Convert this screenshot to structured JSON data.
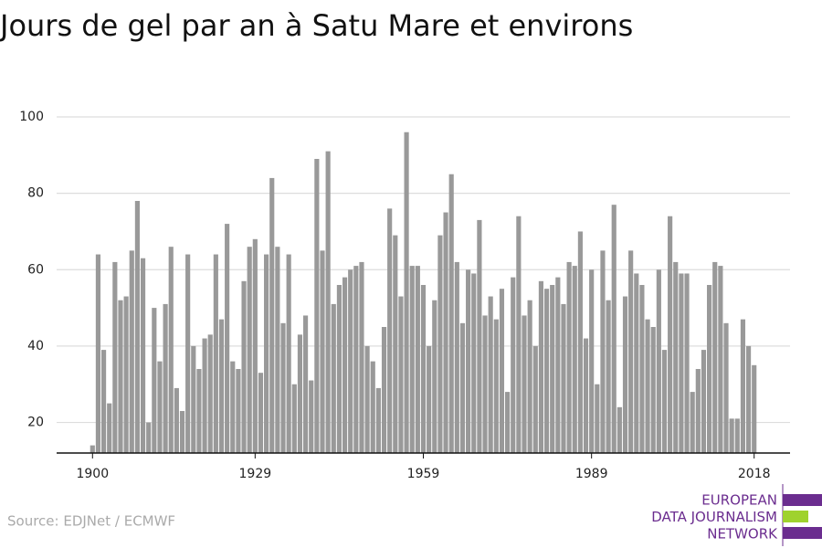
{
  "chart_data": {
    "type": "bar",
    "title": "Jours de gel par an à Satu Mare et environs",
    "source": "Source: EDJNet / ECMWF",
    "logo_lines": [
      "EUROPEAN",
      "DATA JOURNALISM",
      "NETWORK"
    ],
    "color": "#999999",
    "grid": true,
    "x": [
      1900,
      1901,
      1902,
      1903,
      1904,
      1905,
      1906,
      1907,
      1908,
      1909,
      1910,
      1911,
      1912,
      1913,
      1914,
      1915,
      1916,
      1917,
      1918,
      1919,
      1920,
      1921,
      1922,
      1923,
      1924,
      1925,
      1926,
      1927,
      1928,
      1929,
      1930,
      1931,
      1932,
      1933,
      1934,
      1935,
      1936,
      1937,
      1938,
      1939,
      1940,
      1941,
      1942,
      1943,
      1944,
      1945,
      1946,
      1947,
      1948,
      1949,
      1950,
      1951,
      1952,
      1953,
      1954,
      1955,
      1956,
      1957,
      1958,
      1959,
      1960,
      1961,
      1962,
      1963,
      1964,
      1965,
      1966,
      1967,
      1968,
      1969,
      1970,
      1971,
      1972,
      1973,
      1974,
      1975,
      1976,
      1977,
      1978,
      1979,
      1980,
      1981,
      1982,
      1983,
      1984,
      1985,
      1986,
      1987,
      1988,
      1989,
      1990,
      1991,
      1992,
      1993,
      1994,
      1995,
      1996,
      1997,
      1998,
      1999,
      2000,
      2001,
      2002,
      2003,
      2004,
      2005,
      2006,
      2007,
      2008,
      2009,
      2010,
      2011,
      2012,
      2013,
      2014,
      2015,
      2016,
      2017,
      2018
    ],
    "values": [
      14,
      64,
      39,
      25,
      62,
      52,
      53,
      65,
      78,
      63,
      20,
      50,
      36,
      51,
      66,
      29,
      23,
      64,
      40,
      34,
      42,
      43,
      64,
      47,
      72,
      36,
      34,
      57,
      66,
      68,
      33,
      64,
      84,
      66,
      46,
      64,
      30,
      43,
      48,
      31,
      89,
      65,
      91,
      51,
      56,
      58,
      60,
      61,
      62,
      40,
      36,
      29,
      45,
      76,
      69,
      53,
      96,
      61,
      61,
      56,
      40,
      52,
      69,
      75,
      85,
      62,
      46,
      60,
      59,
      73,
      48,
      53,
      47,
      55,
      28,
      58,
      74,
      48,
      52,
      40,
      57,
      55,
      56,
      58,
      51,
      62,
      61,
      70,
      42,
      60,
      30,
      65,
      52,
      77,
      24,
      53,
      65,
      59,
      56,
      47,
      45,
      60,
      39,
      74,
      62,
      59,
      59,
      28,
      34,
      39,
      56,
      62,
      61,
      46,
      21,
      21,
      47,
      40,
      35
    ],
    "xlim": [
      1893.6,
      2024.4
    ],
    "xticks": [
      1900,
      1929,
      1959,
      1989,
      2018
    ],
    "ylim": [
      12,
      100
    ],
    "yticks": [
      20,
      40,
      60,
      80,
      100
    ]
  }
}
